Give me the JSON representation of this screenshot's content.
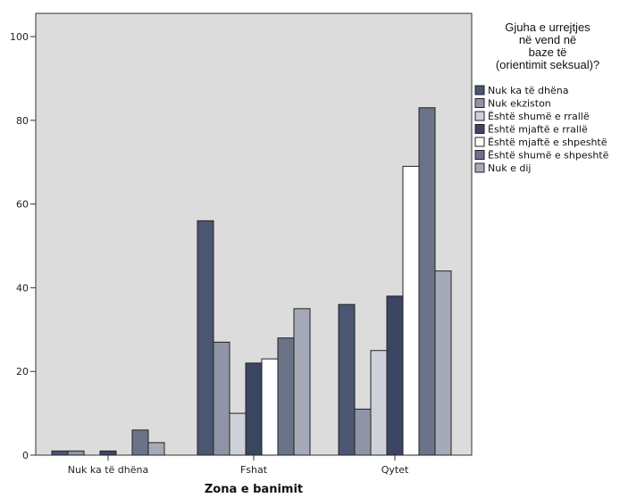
{
  "chart_data": {
    "type": "bar",
    "title": "",
    "xlabel": "Zona e banimit",
    "ylabel": "",
    "ylim": [
      0,
      100
    ],
    "yticks": [
      0,
      20,
      40,
      60,
      80,
      100
    ],
    "grid": false,
    "legend_position": "top-right",
    "legend_title": "Gjuha e urrejtjes\nnë vend në\nbaze të\n(orientimit seksual)?",
    "categories": [
      "Nuk ka të dhëna",
      "Fshat",
      "Qytet"
    ],
    "series": [
      {
        "name": "Nuk ka të dhëna",
        "color": "#4a5672",
        "values": [
          1,
          56,
          36
        ]
      },
      {
        "name": "Nuk ekziston",
        "color": "#8f95a6",
        "values": [
          1,
          27,
          11
        ]
      },
      {
        "name": "Është shumë e rrallë",
        "color": "#cfd1d8",
        "values": [
          0,
          10,
          25
        ]
      },
      {
        "name": "Është mjaftë e rrallë",
        "color": "#3a4662",
        "values": [
          1,
          22,
          38
        ]
      },
      {
        "name": "Është mjaftë e shpeshtë",
        "color": "#ffffff",
        "values": [
          0,
          23,
          69
        ]
      },
      {
        "name": "Është shumë e shpeshtë",
        "color": "#6b7388",
        "values": [
          6,
          28,
          83
        ]
      },
      {
        "name": "Nuk e dij",
        "color": "#a6aab8",
        "values": [
          3,
          35,
          44
        ]
      }
    ]
  }
}
